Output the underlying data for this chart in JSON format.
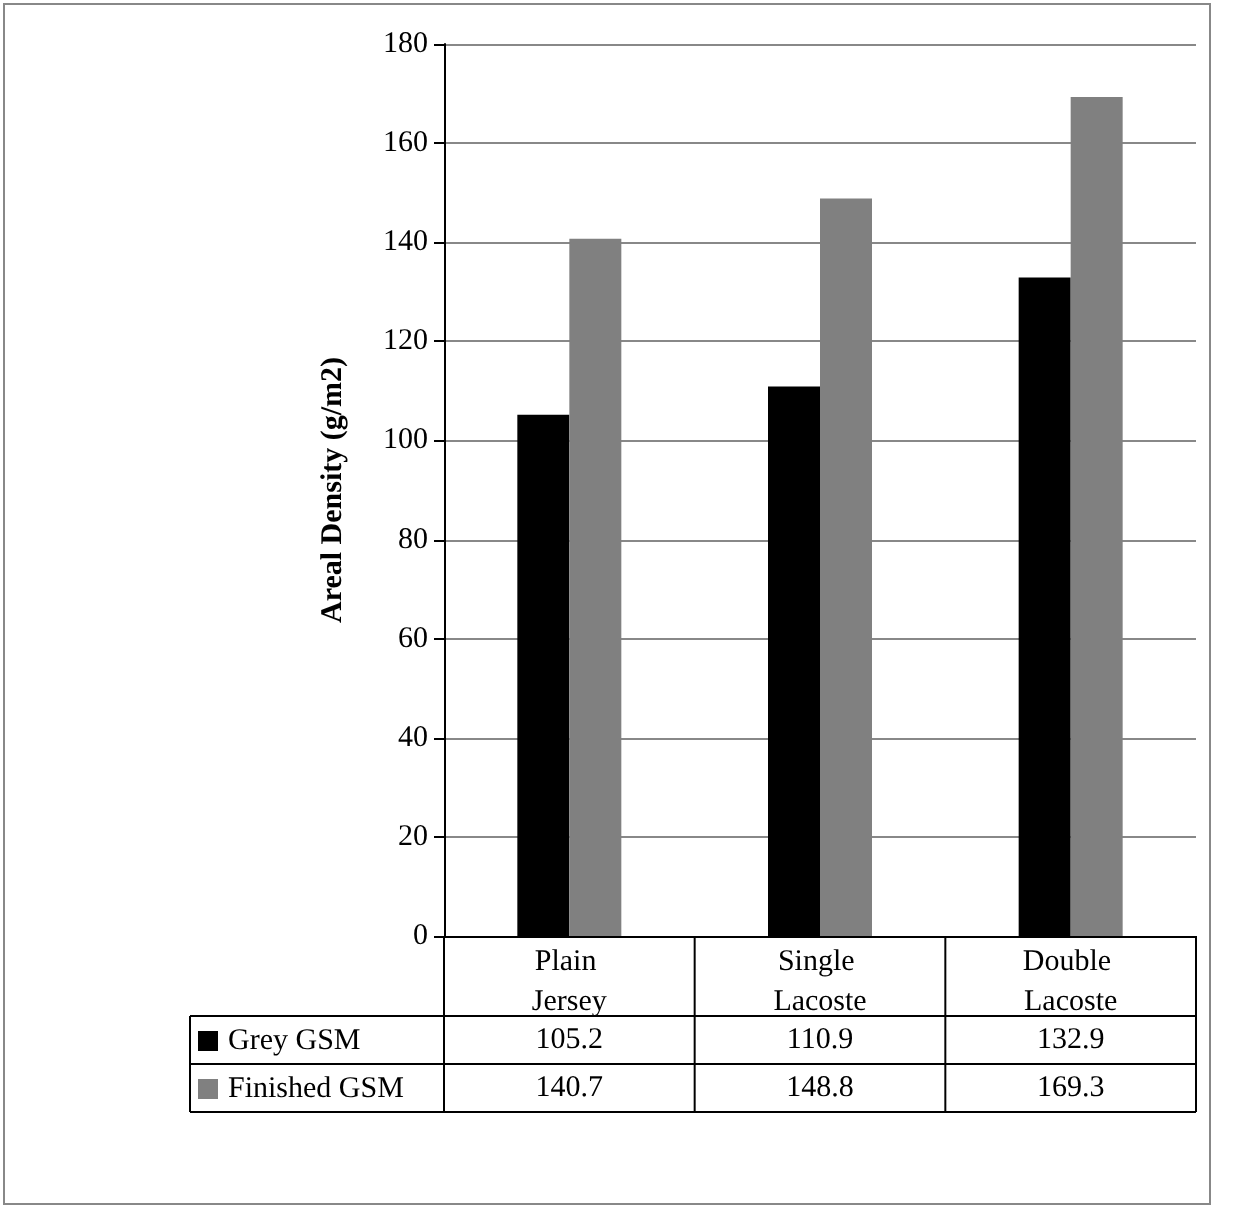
{
  "chart_data": {
    "type": "bar",
    "ylabel": "Areal Density (g/m2)",
    "categories": [
      "Plain Jersey",
      "Single Lacoste",
      "Double Lacoste"
    ],
    "series": [
      {
        "name": "Grey GSM",
        "color": "#000000",
        "values": [
          105.2,
          110.9,
          132.9
        ]
      },
      {
        "name": "Finished GSM",
        "color": "#808080",
        "values": [
          140.7,
          148.8,
          169.3
        ]
      }
    ],
    "ylim": [
      0,
      180
    ],
    "yticks": [
      0,
      20,
      40,
      60,
      80,
      100,
      120,
      140,
      160,
      180
    ],
    "grid": "y",
    "legend": "bottom left",
    "data_labels": true
  }
}
